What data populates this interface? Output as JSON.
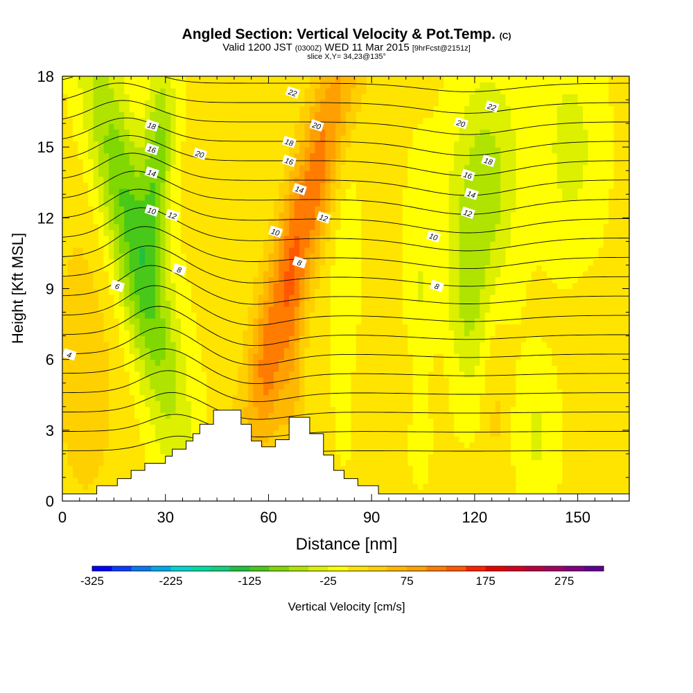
{
  "header": {
    "title": "Angled Section: Vertical Velocity & Pot.Temp.",
    "title_suffix": "(C)",
    "valid_prefix": "Valid 1200 JST",
    "valid_zulu": "(0300Z)",
    "valid_date": "WED 11 Mar 2015",
    "forecast": "[9hrFcst@2151z]",
    "slice": "slice X,Y= 34,23@135°"
  },
  "chart_data": {
    "type": "heatmap",
    "xlabel": "Distance [nm]",
    "ylabel": "Height [Kft MSL]",
    "xlim": [
      0,
      165
    ],
    "ylim": [
      0,
      18
    ],
    "x_ticks": [
      0,
      30,
      60,
      90,
      120,
      150
    ],
    "y_ticks": [
      0,
      3,
      6,
      9,
      12,
      15,
      18
    ],
    "colorbar": {
      "label": "Vertical Velocity [cm/s]",
      "min": -325,
      "max": 325,
      "step": 25,
      "tick_labels": [
        -325,
        -225,
        -125,
        -25,
        75,
        175,
        275
      ],
      "colors": [
        "#0000ff",
        "#0a3cff",
        "#0878f0",
        "#00a8e8",
        "#00d4d0",
        "#00dca0",
        "#10d080",
        "#20c040",
        "#48c818",
        "#80d800",
        "#b0e400",
        "#dcf000",
        "#ffff00",
        "#ffe400",
        "#ffd000",
        "#ffb800",
        "#ffa000",
        "#ff7c00",
        "#ff5800",
        "#ff2000",
        "#e80000",
        "#d00020",
        "#b80040",
        "#a00060",
        "#800080",
        "#600090"
      ]
    },
    "contour_field": "Potential Temperature (C)",
    "contour_labels": [
      {
        "text": "22",
        "x": 67,
        "y": 17.3
      },
      {
        "text": "22",
        "x": 125,
        "y": 16.7
      },
      {
        "text": "20",
        "x": 74,
        "y": 15.9
      },
      {
        "text": "20",
        "x": 116,
        "y": 16.0
      },
      {
        "text": "20",
        "x": 40,
        "y": 14.7
      },
      {
        "text": "18",
        "x": 26,
        "y": 15.9
      },
      {
        "text": "18",
        "x": 66,
        "y": 15.2
      },
      {
        "text": "18",
        "x": 124,
        "y": 14.4
      },
      {
        "text": "16",
        "x": 26,
        "y": 14.9
      },
      {
        "text": "16",
        "x": 66,
        "y": 14.4
      },
      {
        "text": "16",
        "x": 118,
        "y": 13.8
      },
      {
        "text": "14",
        "x": 26,
        "y": 13.9
      },
      {
        "text": "14",
        "x": 69,
        "y": 13.2
      },
      {
        "text": "14",
        "x": 119,
        "y": 13.0
      },
      {
        "text": "12",
        "x": 32,
        "y": 12.1
      },
      {
        "text": "12",
        "x": 76,
        "y": 12.0
      },
      {
        "text": "12",
        "x": 118,
        "y": 12.2
      },
      {
        "text": "10",
        "x": 26,
        "y": 12.3
      },
      {
        "text": "10",
        "x": 62,
        "y": 11.4
      },
      {
        "text": "10",
        "x": 108,
        "y": 11.2
      },
      {
        "text": "8",
        "x": 34,
        "y": 9.8
      },
      {
        "text": "8",
        "x": 69,
        "y": 10.1
      },
      {
        "text": "8",
        "x": 109,
        "y": 9.1
      },
      {
        "text": "6",
        "x": 16,
        "y": 9.1
      },
      {
        "text": "4",
        "x": 2,
        "y": 6.2
      }
    ],
    "terrain_profile": [
      [
        0,
        0.3
      ],
      [
        6,
        0.3
      ],
      [
        10,
        0.3
      ],
      [
        10,
        0.65
      ],
      [
        16,
        0.65
      ],
      [
        16,
        0.95
      ],
      [
        20,
        0.95
      ],
      [
        20,
        1.3
      ],
      [
        24,
        1.3
      ],
      [
        24,
        1.6
      ],
      [
        30,
        1.6
      ],
      [
        30,
        1.9
      ],
      [
        32,
        1.9
      ],
      [
        32,
        2.2
      ],
      [
        36,
        2.2
      ],
      [
        36,
        2.55
      ],
      [
        38,
        2.55
      ],
      [
        38,
        2.85
      ],
      [
        40,
        2.85
      ],
      [
        40,
        3.25
      ],
      [
        44,
        3.25
      ],
      [
        44,
        3.85
      ],
      [
        52,
        3.85
      ],
      [
        52,
        3.25
      ],
      [
        55,
        3.25
      ],
      [
        55,
        2.55
      ],
      [
        58,
        2.55
      ],
      [
        58,
        2.3
      ],
      [
        62,
        2.3
      ],
      [
        62,
        2.6
      ],
      [
        66,
        2.6
      ],
      [
        66,
        3.55
      ],
      [
        72,
        3.55
      ],
      [
        72,
        2.85
      ],
      [
        76,
        2.85
      ],
      [
        76,
        1.95
      ],
      [
        79,
        1.95
      ],
      [
        79,
        1.3
      ],
      [
        82,
        1.3
      ],
      [
        82,
        0.95
      ],
      [
        86,
        0.95
      ],
      [
        86,
        0.65
      ],
      [
        92,
        0.65
      ],
      [
        92,
        0.3
      ],
      [
        165,
        0.3
      ]
    ]
  }
}
